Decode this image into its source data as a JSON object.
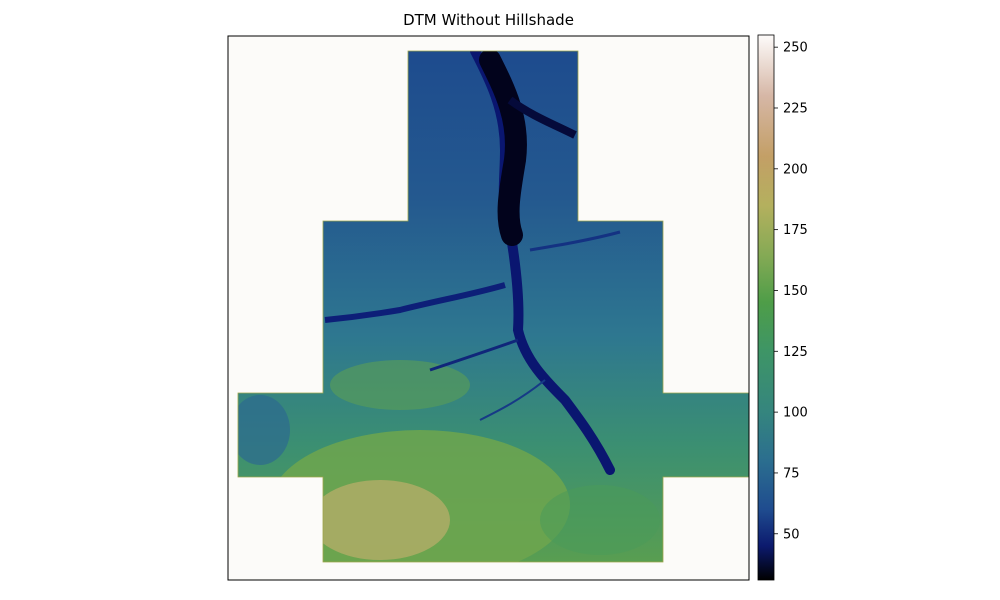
{
  "chart_data": {
    "type": "heatmap",
    "title": "DTM Without Hillshade",
    "xlabel": "",
    "ylabel": "",
    "colormap": "gist_earth",
    "colorbar": {
      "range": [
        31,
        255
      ],
      "ticks": [
        50,
        75,
        100,
        125,
        150,
        175,
        200,
        225,
        250
      ],
      "tick_labels": [
        "50",
        "75",
        "100",
        "125",
        "150",
        "175",
        "200",
        "225",
        "250"
      ],
      "stops": [
        {
          "value": 31,
          "color": "#000000"
        },
        {
          "value": 45,
          "color": "#0c1a6e"
        },
        {
          "value": 60,
          "color": "#1f4c8f"
        },
        {
          "value": 80,
          "color": "#2b6e8f"
        },
        {
          "value": 100,
          "color": "#35857e"
        },
        {
          "value": 125,
          "color": "#3e9566"
        },
        {
          "value": 145,
          "color": "#4e9d48"
        },
        {
          "value": 165,
          "color": "#86aa55"
        },
        {
          "value": 185,
          "color": "#b4b05e"
        },
        {
          "value": 205,
          "color": "#c39f66"
        },
        {
          "value": 230,
          "color": "#d6b7a6"
        },
        {
          "value": 255,
          "color": "#fdfbfa"
        }
      ]
    },
    "no_data_color": "#fcfbf9",
    "grid": false,
    "axis_ticks": false
  }
}
